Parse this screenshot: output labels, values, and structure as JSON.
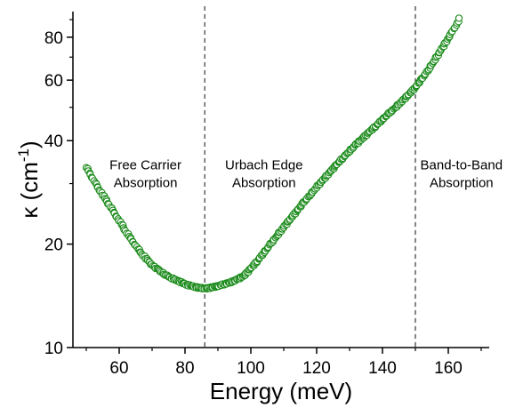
{
  "chart_data": {
    "type": "scatter",
    "title": "",
    "xlabel": "Energy (meV)",
    "ylabel": {
      "base": "κ (cm",
      "superscript": "-1",
      "close": ")"
    },
    "x_scale": "linear",
    "y_scale": "log",
    "xlim": [
      45,
      175
    ],
    "ylim": [
      10,
      95
    ],
    "x_ticks": [
      60,
      80,
      100,
      120,
      140,
      160
    ],
    "x_tick_labels": [
      "60",
      "80",
      "100",
      "120",
      "140",
      "160"
    ],
    "y_ticks": [
      10,
      20,
      40,
      60,
      80
    ],
    "y_tick_labels": [
      "10",
      "20",
      "40",
      "60",
      "80"
    ],
    "grid": false,
    "marker_color": "#1a8a1a",
    "marker_fill": "#ffffff",
    "vertical_lines": [
      86,
      150
    ],
    "regions": [
      {
        "x": 68,
        "y": 33,
        "lines": [
          "Free Carrier",
          "Absorption"
        ]
      },
      {
        "x": 104,
        "y": 33,
        "lines": [
          "Urbach Edge",
          "Absorption"
        ]
      },
      {
        "x": 164,
        "y": 33,
        "lines": [
          "Band-to-Band",
          "Absorption"
        ]
      }
    ],
    "series": [
      {
        "curve": [
          [
            50,
            33.5
          ],
          [
            51,
            32.2
          ],
          [
            52,
            31.0
          ],
          [
            53,
            29.8
          ],
          [
            54,
            28.8
          ],
          [
            55,
            27.8
          ],
          [
            56,
            26.9
          ],
          [
            57,
            26.0
          ],
          [
            58,
            25.1
          ],
          [
            59,
            24.2
          ],
          [
            60,
            23.4
          ],
          [
            61,
            22.6
          ],
          [
            62,
            21.8
          ],
          [
            63,
            21.1
          ],
          [
            64,
            20.4
          ],
          [
            65,
            19.8
          ],
          [
            66,
            19.2
          ],
          [
            67,
            18.7
          ],
          [
            68,
            18.2
          ],
          [
            69,
            17.8
          ],
          [
            70,
            17.4
          ],
          [
            72,
            16.8
          ],
          [
            74,
            16.3
          ],
          [
            76,
            15.9
          ],
          [
            78,
            15.6
          ],
          [
            80,
            15.3
          ],
          [
            82,
            15.1
          ],
          [
            84,
            14.95
          ],
          [
            86,
            14.85
          ],
          [
            88,
            14.95
          ],
          [
            90,
            15.1
          ],
          [
            92,
            15.3
          ],
          [
            94,
            15.5
          ],
          [
            96,
            15.8
          ],
          [
            98,
            16.2
          ],
          [
            100,
            17.0
          ],
          [
            102,
            17.9
          ],
          [
            104,
            18.9
          ],
          [
            106,
            20.0
          ],
          [
            108,
            21.2
          ],
          [
            110,
            22.4
          ],
          [
            112,
            23.7
          ],
          [
            114,
            25.0
          ],
          [
            116,
            26.4
          ],
          [
            118,
            27.8
          ],
          [
            120,
            29.3
          ],
          [
            122,
            30.8
          ],
          [
            124,
            32.4
          ],
          [
            126,
            34.0
          ],
          [
            128,
            35.7
          ],
          [
            130,
            37.3
          ],
          [
            132,
            39.0
          ],
          [
            134,
            40.7
          ],
          [
            136,
            42.4
          ],
          [
            138,
            44.2
          ],
          [
            140,
            46.1
          ],
          [
            142,
            48.0
          ],
          [
            144,
            50.0
          ],
          [
            146,
            52.2
          ],
          [
            148,
            54.6
          ],
          [
            150,
            57.2
          ],
          [
            152,
            60.5
          ],
          [
            154,
            64.5
          ],
          [
            156,
            69.0
          ],
          [
            158,
            74.0
          ],
          [
            160,
            79.5
          ],
          [
            161,
            82.5
          ],
          [
            162,
            85.5
          ],
          [
            163,
            89.0
          ],
          [
            163.7,
            92.0
          ]
        ]
      }
    ]
  }
}
